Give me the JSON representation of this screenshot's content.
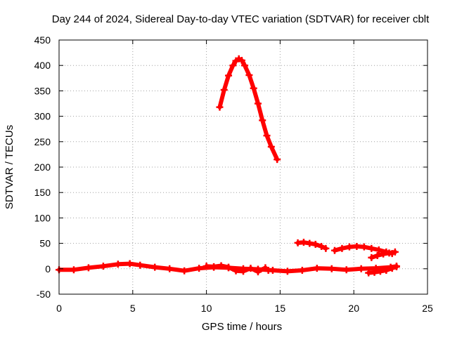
{
  "chart_data": {
    "type": "scatter",
    "title": "Day 244 of 2024, Sidereal Day-to-day VTEC variation (SDTVAR) for receiver cblt",
    "xlabel": "GPS time / hours",
    "ylabel": "SDTVAR / TECUs",
    "xlim": [
      0,
      25
    ],
    "ylim": [
      -50,
      450
    ],
    "xticks": [
      0,
      5,
      10,
      15,
      20,
      25
    ],
    "yticks": [
      -50,
      0,
      50,
      100,
      150,
      200,
      250,
      300,
      350,
      400,
      450
    ],
    "grid": true,
    "marker": "+",
    "series_color": "#ff0000",
    "series": [
      {
        "name": "baseline-track",
        "x": [
          0,
          1,
          2,
          3,
          4,
          4.8,
          5.5,
          6.5,
          7.5,
          8.5,
          9.5,
          10.5,
          11.5,
          12.5,
          13.5,
          14.5,
          15.5,
          16.5,
          17.5,
          18.5,
          19.5,
          20.5,
          21.5,
          22.5,
          22.9
        ],
        "y": [
          -2,
          -2,
          2,
          5,
          9,
          10,
          7,
          3,
          0,
          -4,
          1,
          3,
          2,
          0,
          -1,
          -3,
          -5,
          -3,
          1,
          0,
          -2,
          0,
          1,
          3,
          5
        ]
      },
      {
        "name": "baseline-scatter",
        "x": [
          10,
          10.5,
          11,
          11.5,
          12,
          12.5,
          13,
          13.5,
          14,
          14.2
        ],
        "y": [
          5,
          4,
          6,
          3,
          -4,
          -5,
          1,
          -6,
          2,
          -3
        ]
      },
      {
        "name": "peak-arc",
        "x": [
          10.9,
          11.2,
          11.5,
          11.8,
          12.0,
          12.2,
          12.4,
          12.6,
          12.9,
          13.2,
          13.5,
          13.8,
          14.1,
          14.4,
          14.8
        ],
        "y": [
          318,
          352,
          380,
          400,
          409,
          413,
          410,
          400,
          381,
          355,
          325,
          292,
          262,
          240,
          215
        ]
      },
      {
        "name": "arc-evening",
        "x": [
          16.2,
          16.6,
          17.0,
          17.4,
          17.8,
          18.1
        ],
        "y": [
          51,
          52,
          50,
          48,
          44,
          40
        ]
      },
      {
        "name": "arc-late",
        "x": [
          18.7,
          19.2,
          19.7,
          20.2,
          20.7,
          21.2,
          21.7,
          22.2,
          22.6
        ],
        "y": [
          36,
          40,
          43,
          44,
          43,
          40,
          37,
          33,
          30
        ]
      },
      {
        "name": "arc-end-rising",
        "x": [
          21.2,
          21.6,
          22.0,
          22.4,
          22.8
        ],
        "y": [
          22,
          26,
          29,
          31,
          33
        ]
      },
      {
        "name": "tail-end",
        "x": [
          21.0,
          21.4,
          21.8,
          22.2,
          22.6,
          22.9
        ],
        "y": [
          -8,
          -7,
          -5,
          -3,
          1,
          4
        ]
      }
    ]
  }
}
